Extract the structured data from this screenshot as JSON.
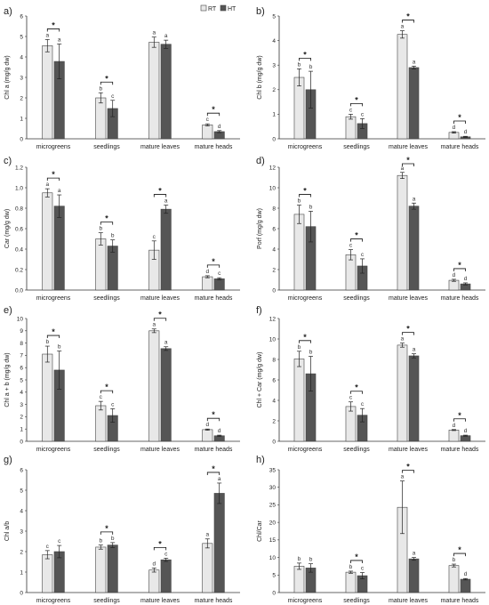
{
  "legend": {
    "items": [
      {
        "label": "RT",
        "color": "#e8e8e8"
      },
      {
        "label": "HT",
        "color": "#555555"
      }
    ]
  },
  "colors": {
    "rt": "#e8e8e8",
    "ht": "#555555",
    "axis": "#333333"
  },
  "chart_data": [
    {
      "panel": "a)",
      "type": "bar",
      "ylabel": "Chl a (mg/g dw)",
      "ylim": [
        0,
        6
      ],
      "yticks": [
        0,
        1,
        2,
        3,
        4,
        5,
        6
      ],
      "tick_decimals": 0,
      "categories": [
        "microgreens",
        "seedlings",
        "mature leaves",
        "mature heads"
      ],
      "series": [
        {
          "name": "RT",
          "values": [
            4.55,
            2.0,
            4.72,
            0.68
          ],
          "errors": [
            0.3,
            0.25,
            0.25,
            0.05
          ],
          "letters": [
            "a",
            "b",
            "a",
            "c"
          ]
        },
        {
          "name": "HT",
          "values": [
            3.78,
            1.48,
            4.62,
            0.35
          ],
          "errors": [
            0.85,
            0.4,
            0.2,
            0.05
          ],
          "letters": [
            "a",
            "c",
            "a",
            "d"
          ]
        }
      ],
      "significant": [
        true,
        true,
        false,
        true
      ]
    },
    {
      "panel": "b)",
      "type": "bar",
      "ylabel": "Chl b (mg/g dw)",
      "ylim": [
        0,
        5
      ],
      "yticks": [
        0,
        1,
        2,
        3,
        4,
        5
      ],
      "tick_decimals": 0,
      "categories": [
        "microgreens",
        "seedlings",
        "mature leaves",
        "mature heads"
      ],
      "series": [
        {
          "name": "RT",
          "values": [
            2.5,
            0.9,
            4.25,
            0.26
          ],
          "errors": [
            0.35,
            0.1,
            0.15,
            0.03
          ],
          "letters": [
            "b",
            "c",
            "a",
            "d"
          ]
        },
        {
          "name": "HT",
          "values": [
            2.0,
            0.62,
            2.9,
            0.08
          ],
          "errors": [
            0.75,
            0.2,
            0.06,
            0.02
          ],
          "letters": [
            "b",
            "c",
            "a",
            "d"
          ]
        }
      ],
      "significant": [
        true,
        true,
        true,
        true
      ]
    },
    {
      "panel": "c)",
      "type": "bar",
      "ylabel": "Car (mg/g dw)",
      "ylim": [
        0,
        1.2
      ],
      "yticks": [
        0,
        0.2,
        0.4,
        0.6,
        0.8,
        1.0,
        1.2
      ],
      "tick_decimals": 1,
      "categories": [
        "microgreens",
        "seedlings",
        "mature leaves",
        "mature heads"
      ],
      "series": [
        {
          "name": "RT",
          "values": [
            0.95,
            0.5,
            0.39,
            0.13
          ],
          "errors": [
            0.04,
            0.06,
            0.09,
            0.01
          ],
          "letters": [
            "a",
            "b",
            "c",
            "d"
          ]
        },
        {
          "name": "HT",
          "values": [
            0.82,
            0.43,
            0.79,
            0.11
          ],
          "errors": [
            0.11,
            0.06,
            0.04,
            0.01
          ],
          "letters": [
            "a",
            "b",
            "a",
            "c"
          ]
        }
      ],
      "significant": [
        true,
        true,
        true,
        true
      ]
    },
    {
      "panel": "d)",
      "type": "bar",
      "ylabel": "Porf (mg/g dw)",
      "ylim": [
        0,
        12
      ],
      "yticks": [
        0,
        2,
        4,
        6,
        8,
        10,
        12
      ],
      "tick_decimals": 0,
      "categories": [
        "microgreens",
        "seedlings",
        "mature leaves",
        "mature heads"
      ],
      "series": [
        {
          "name": "RT",
          "values": [
            7.4,
            3.45,
            11.2,
            0.95
          ],
          "errors": [
            0.9,
            0.5,
            0.3,
            0.1
          ],
          "letters": [
            "b",
            "c",
            "a",
            "d"
          ]
        },
        {
          "name": "HT",
          "values": [
            6.2,
            2.35,
            8.2,
            0.6
          ],
          "errors": [
            1.5,
            0.7,
            0.3,
            0.1
          ],
          "letters": [
            "b",
            "c",
            "a",
            "d"
          ]
        }
      ],
      "significant": [
        true,
        true,
        true,
        true
      ]
    },
    {
      "panel": "e)",
      "type": "bar",
      "ylabel": "Chl a + b (mg/g dw)",
      "ylim": [
        0,
        10
      ],
      "yticks": [
        0,
        1,
        2,
        3,
        4,
        5,
        6,
        7,
        8,
        9,
        10
      ],
      "tick_decimals": 0,
      "categories": [
        "microgreens",
        "seedlings",
        "mature leaves",
        "mature heads"
      ],
      "series": [
        {
          "name": "RT",
          "values": [
            7.1,
            2.9,
            9.0,
            0.95
          ],
          "errors": [
            0.65,
            0.35,
            0.15,
            0.05
          ],
          "letters": [
            "b",
            "c",
            "a",
            "d"
          ]
        },
        {
          "name": "HT",
          "values": [
            5.8,
            2.1,
            7.55,
            0.45
          ],
          "errors": [
            1.55,
            0.55,
            0.15,
            0.05
          ],
          "letters": [
            "b",
            "c",
            "a",
            "d"
          ]
        }
      ],
      "significant": [
        true,
        true,
        true,
        true
      ]
    },
    {
      "panel": "f)",
      "type": "bar",
      "ylabel": "Chl + Car (mg/g dw)",
      "ylim": [
        0,
        12
      ],
      "yticks": [
        0,
        2,
        4,
        6,
        8,
        10,
        12
      ],
      "tick_decimals": 0,
      "categories": [
        "microgreens",
        "seedlings",
        "mature leaves",
        "mature heads"
      ],
      "series": [
        {
          "name": "RT",
          "values": [
            8.05,
            3.4,
            9.4,
            1.1
          ],
          "errors": [
            0.75,
            0.45,
            0.2,
            0.05
          ],
          "letters": [
            "b",
            "c",
            "a",
            "d"
          ]
        },
        {
          "name": "HT",
          "values": [
            6.6,
            2.55,
            8.35,
            0.55
          ],
          "errors": [
            1.7,
            0.65,
            0.2,
            0.05
          ],
          "letters": [
            "b",
            "c",
            "a",
            "d"
          ]
        }
      ],
      "significant": [
        true,
        true,
        true,
        true
      ]
    },
    {
      "panel": "g)",
      "type": "bar",
      "ylabel": "Chl a/b",
      "ylim": [
        0,
        6
      ],
      "yticks": [
        0,
        1,
        2,
        3,
        4,
        5,
        6
      ],
      "tick_decimals": 0,
      "categories": [
        "microgreens",
        "seedlings",
        "mature leaves",
        "mature heads"
      ],
      "series": [
        {
          "name": "RT",
          "values": [
            1.85,
            2.22,
            1.1,
            2.4
          ],
          "errors": [
            0.2,
            0.1,
            0.1,
            0.22
          ],
          "letters": [
            "c",
            "b",
            "d",
            "a"
          ]
        },
        {
          "name": "HT",
          "values": [
            2.0,
            2.32,
            1.6,
            4.85
          ],
          "errors": [
            0.3,
            0.12,
            0.08,
            0.5
          ],
          "letters": [
            "c",
            "b",
            "c",
            "a"
          ]
        }
      ],
      "significant": [
        false,
        true,
        true,
        true
      ]
    },
    {
      "panel": "h)",
      "type": "bar",
      "ylabel": "Chl/Car",
      "ylim": [
        0,
        35
      ],
      "yticks": [
        0,
        5,
        10,
        15,
        20,
        25,
        30,
        35
      ],
      "tick_decimals": 0,
      "categories": [
        "microgreens",
        "seedlings",
        "mature leaves",
        "mature heads"
      ],
      "series": [
        {
          "name": "RT",
          "values": [
            7.5,
            5.8,
            24.3,
            7.7
          ],
          "errors": [
            0.9,
            0.3,
            7.5,
            0.4
          ],
          "letters": [
            "b",
            "b",
            "a",
            "b"
          ]
        },
        {
          "name": "HT",
          "values": [
            7.0,
            4.8,
            9.6,
            3.8
          ],
          "errors": [
            1.2,
            0.9,
            0.4,
            0.2
          ],
          "letters": [
            "b",
            "c",
            "a",
            "d"
          ]
        }
      ],
      "significant": [
        false,
        true,
        true,
        true
      ]
    }
  ]
}
